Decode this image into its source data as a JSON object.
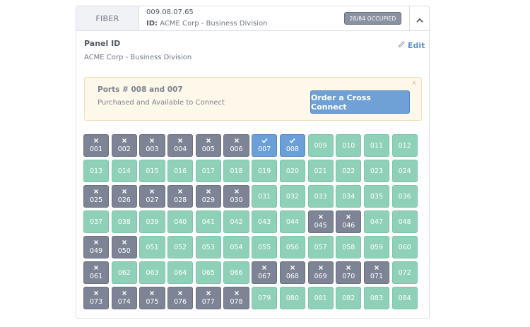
{
  "header": {
    "type_label": "FIBER",
    "code": "009.08.07.65",
    "id_key": "ID:",
    "id_value": "ACME Corp - Business Division",
    "occupied_badge": "28/84 OCCUPIED"
  },
  "panel": {
    "label": "Panel ID",
    "value": "ACME Corp - Business Division",
    "edit_label": "Edit"
  },
  "notice": {
    "title": "Ports # 008 and 007",
    "subtitle": "Purchased and Available to Connect",
    "button_label": "Order a Cross Connect",
    "close_label": "x"
  },
  "colors": {
    "available": "#8ed1b8",
    "occupied": "#7d8495",
    "selected": "#6a9fd8",
    "accent": "#5b8fc9"
  },
  "ports": [
    {
      "label": "001",
      "state": "occupied"
    },
    {
      "label": "002",
      "state": "occupied"
    },
    {
      "label": "003",
      "state": "occupied"
    },
    {
      "label": "004",
      "state": "occupied"
    },
    {
      "label": "005",
      "state": "occupied"
    },
    {
      "label": "006",
      "state": "occupied"
    },
    {
      "label": "007",
      "state": "selected"
    },
    {
      "label": "008",
      "state": "selected"
    },
    {
      "label": "009",
      "state": "available"
    },
    {
      "label": "010",
      "state": "available"
    },
    {
      "label": "011",
      "state": "available"
    },
    {
      "label": "012",
      "state": "available"
    },
    {
      "label": "013",
      "state": "available"
    },
    {
      "label": "014",
      "state": "available"
    },
    {
      "label": "015",
      "state": "available"
    },
    {
      "label": "016",
      "state": "available"
    },
    {
      "label": "017",
      "state": "available"
    },
    {
      "label": "018",
      "state": "available"
    },
    {
      "label": "019",
      "state": "available"
    },
    {
      "label": "020",
      "state": "available"
    },
    {
      "label": "021",
      "state": "available"
    },
    {
      "label": "022",
      "state": "available"
    },
    {
      "label": "023",
      "state": "available"
    },
    {
      "label": "024",
      "state": "available"
    },
    {
      "label": "025",
      "state": "occupied"
    },
    {
      "label": "026",
      "state": "occupied"
    },
    {
      "label": "027",
      "state": "occupied"
    },
    {
      "label": "028",
      "state": "occupied"
    },
    {
      "label": "029",
      "state": "occupied"
    },
    {
      "label": "030",
      "state": "occupied"
    },
    {
      "label": "031",
      "state": "available"
    },
    {
      "label": "032",
      "state": "available"
    },
    {
      "label": "033",
      "state": "available"
    },
    {
      "label": "034",
      "state": "available"
    },
    {
      "label": "035",
      "state": "available"
    },
    {
      "label": "036",
      "state": "available"
    },
    {
      "label": "037",
      "state": "available"
    },
    {
      "label": "038",
      "state": "available"
    },
    {
      "label": "039",
      "state": "available"
    },
    {
      "label": "040",
      "state": "available"
    },
    {
      "label": "041",
      "state": "available"
    },
    {
      "label": "042",
      "state": "available"
    },
    {
      "label": "043",
      "state": "available"
    },
    {
      "label": "044",
      "state": "available"
    },
    {
      "label": "045",
      "state": "occupied"
    },
    {
      "label": "046",
      "state": "occupied"
    },
    {
      "label": "047",
      "state": "available"
    },
    {
      "label": "048",
      "state": "available"
    },
    {
      "label": "049",
      "state": "occupied"
    },
    {
      "label": "050",
      "state": "occupied"
    },
    {
      "label": "051",
      "state": "available"
    },
    {
      "label": "052",
      "state": "available"
    },
    {
      "label": "053",
      "state": "available"
    },
    {
      "label": "054",
      "state": "available"
    },
    {
      "label": "055",
      "state": "available"
    },
    {
      "label": "056",
      "state": "available"
    },
    {
      "label": "057",
      "state": "available"
    },
    {
      "label": "058",
      "state": "available"
    },
    {
      "label": "059",
      "state": "available"
    },
    {
      "label": "060",
      "state": "available"
    },
    {
      "label": "061",
      "state": "occupied"
    },
    {
      "label": "062",
      "state": "available"
    },
    {
      "label": "063",
      "state": "available"
    },
    {
      "label": "064",
      "state": "available"
    },
    {
      "label": "065",
      "state": "available"
    },
    {
      "label": "066",
      "state": "available"
    },
    {
      "label": "067",
      "state": "occupied"
    },
    {
      "label": "068",
      "state": "occupied"
    },
    {
      "label": "069",
      "state": "occupied"
    },
    {
      "label": "070",
      "state": "occupied"
    },
    {
      "label": "071",
      "state": "occupied"
    },
    {
      "label": "072",
      "state": "available"
    },
    {
      "label": "073",
      "state": "occupied"
    },
    {
      "label": "074",
      "state": "occupied"
    },
    {
      "label": "075",
      "state": "occupied"
    },
    {
      "label": "076",
      "state": "occupied"
    },
    {
      "label": "077",
      "state": "occupied"
    },
    {
      "label": "078",
      "state": "occupied"
    },
    {
      "label": "079",
      "state": "available"
    },
    {
      "label": "080",
      "state": "available"
    },
    {
      "label": "081",
      "state": "available"
    },
    {
      "label": "082",
      "state": "available"
    },
    {
      "label": "083",
      "state": "available"
    },
    {
      "label": "084",
      "state": "available"
    }
  ]
}
